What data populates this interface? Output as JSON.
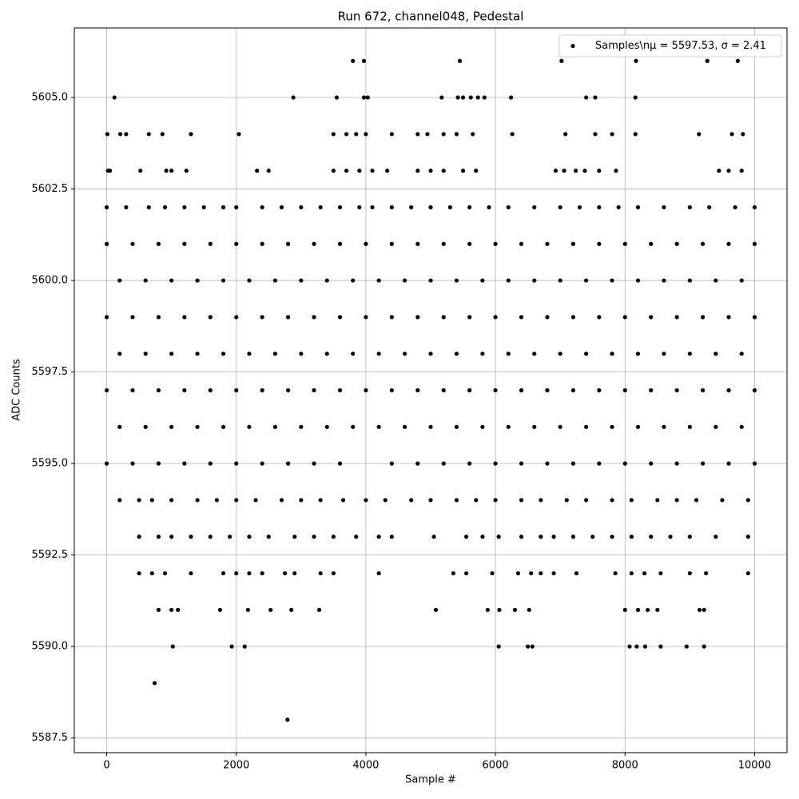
{
  "chart_data": {
    "type": "scatter",
    "title": "Run 672, channel048, Pedestal",
    "x_label": "Sample #",
    "y_label": "ADC Counts",
    "xlim": [
      -500,
      10500
    ],
    "ylim": [
      5587.1,
      5606.9
    ],
    "xticks": [
      0,
      2000,
      4000,
      6000,
      8000,
      10000
    ],
    "yticks": [
      5587.5,
      {
        "value": 5590,
        "label": "5590.0"
      },
      5592.5,
      {
        "value": 5595,
        "label": "5595.0"
      },
      5597.5,
      {
        "value": 5600,
        "label": "5600.0"
      },
      5602.5,
      {
        "value": 5605,
        "label": "5605.0"
      }
    ],
    "grid": true,
    "legend": "upper right",
    "series": [
      {
        "name": "Samples\\nμ = 5597.53, σ = 2.41",
        "color": "#000000",
        "x": [
          3800,
          3970,
          5450,
          7020,
          8170,
          9270,
          9740,
          120,
          2880,
          3550,
          3970,
          4030,
          5170,
          5420,
          5500,
          5620,
          5730,
          5830,
          6240,
          7400,
          7540,
          8160,
          10,
          210,
          300,
          650,
          860,
          1300,
          2040,
          3500,
          3700,
          3850,
          4000,
          4400,
          4800,
          4950,
          5200,
          5400,
          5650,
          6260,
          7080,
          7540,
          7800,
          8160,
          9140,
          9650,
          9820,
          20,
          50,
          520,
          920,
          1000,
          1230,
          2320,
          2500,
          3500,
          3700,
          3900,
          4100,
          4330,
          4800,
          5000,
          5200,
          5500,
          5700,
          6930,
          7060,
          7240,
          7380,
          7600,
          7860,
          9450,
          9600,
          9800,
          0,
          300,
          650,
          900,
          1200,
          1500,
          1800,
          2000,
          2400,
          2700,
          3000,
          3300,
          3600,
          3900,
          4100,
          4400,
          4700,
          5000,
          5300,
          5600,
          5900,
          6200,
          6600,
          7000,
          7300,
          7600,
          7900,
          8200,
          8600,
          9000,
          9300,
          9700,
          10000,
          0,
          400,
          800,
          1200,
          1600,
          2000,
          2400,
          2800,
          3200,
          3600,
          4000,
          4400,
          4800,
          5200,
          5600,
          6000,
          6400,
          6800,
          7200,
          7600,
          8000,
          8400,
          8800,
          9200,
          9600,
          10000,
          200,
          600,
          1000,
          1400,
          1800,
          2200,
          2600,
          3000,
          3400,
          3800,
          4200,
          4600,
          5000,
          5400,
          5800,
          6200,
          6600,
          7000,
          7400,
          7800,
          8200,
          8600,
          9000,
          9400,
          9800,
          0,
          400,
          800,
          1200,
          1600,
          2000,
          2400,
          2800,
          3200,
          3600,
          4000,
          4400,
          4800,
          5200,
          5600,
          6000,
          6400,
          6800,
          7200,
          7600,
          8000,
          8400,
          8800,
          9200,
          9600,
          10000,
          200,
          600,
          1000,
          1400,
          1800,
          2200,
          2600,
          3000,
          3400,
          3800,
          4200,
          4600,
          5000,
          5400,
          5800,
          6200,
          6600,
          7000,
          7400,
          7800,
          8200,
          8600,
          9000,
          9400,
          9800,
          0,
          400,
          800,
          1200,
          1600,
          2000,
          2400,
          2800,
          3200,
          3600,
          4000,
          4400,
          4800,
          5200,
          5600,
          6000,
          6400,
          6800,
          7200,
          7600,
          8000,
          8400,
          8800,
          9200,
          9600,
          10000,
          200,
          600,
          1000,
          1400,
          1800,
          2200,
          2600,
          3000,
          3400,
          3800,
          4200,
          4600,
          5000,
          5400,
          5800,
          6200,
          6600,
          7000,
          7400,
          7800,
          8200,
          8600,
          9000,
          9400,
          9800,
          0,
          400,
          800,
          1200,
          1600,
          2000,
          2400,
          2800,
          3200,
          3600,
          4400,
          4800,
          5200,
          5600,
          6000,
          6400,
          6800,
          7200,
          7600,
          8000,
          8400,
          8800,
          9200,
          9600,
          10000,
          200,
          500,
          700,
          1000,
          1400,
          1700,
          2000,
          2300,
          2700,
          3000,
          3300,
          3650,
          4000,
          4300,
          4700,
          5000,
          5400,
          5700,
          6000,
          6400,
          6700,
          7100,
          7400,
          7800,
          8100,
          8500,
          8800,
          9100,
          9500,
          9900,
          500,
          800,
          1000,
          1300,
          1600,
          1900,
          2200,
          2500,
          2900,
          3200,
          3500,
          3850,
          4200,
          4400,
          5050,
          5550,
          5800,
          6050,
          6400,
          6700,
          6900,
          7200,
          7500,
          7800,
          8100,
          8400,
          8700,
          9000,
          9400,
          9900,
          500,
          700,
          900,
          1300,
          1800,
          2000,
          2200,
          2400,
          2750,
          2900,
          3300,
          3500,
          4200,
          5350,
          5550,
          5950,
          6350,
          6550,
          6700,
          6900,
          7250,
          7850,
          8100,
          8300,
          8550,
          9000,
          9250,
          9900,
          800,
          1000,
          1100,
          1750,
          2180,
          2530,
          2850,
          3280,
          5080,
          5880,
          6060,
          6300,
          6520,
          8000,
          8200,
          8350,
          8500,
          9150,
          9220,
          1020,
          1930,
          2130,
          6050,
          6500,
          6570,
          8070,
          8180,
          8310,
          8550,
          8950,
          9220,
          740,
          2790
        ],
        "values": [
          5606,
          5606,
          5606,
          5606,
          5606,
          5606,
          5606,
          5605,
          5605,
          5605,
          5605,
          5605,
          5605,
          5605,
          5605,
          5605,
          5605,
          5605,
          5605,
          5605,
          5605,
          5605,
          5604,
          5604,
          5604,
          5604,
          5604,
          5604,
          5604,
          5604,
          5604,
          5604,
          5604,
          5604,
          5604,
          5604,
          5604,
          5604,
          5604,
          5604,
          5604,
          5604,
          5604,
          5604,
          5604,
          5604,
          5604,
          5603,
          5603,
          5603,
          5603,
          5603,
          5603,
          5603,
          5603,
          5603,
          5603,
          5603,
          5603,
          5603,
          5603,
          5603,
          5603,
          5603,
          5603,
          5603,
          5603,
          5603,
          5603,
          5603,
          5603,
          5603,
          5603,
          5603,
          5602,
          5602,
          5602,
          5602,
          5602,
          5602,
          5602,
          5602,
          5602,
          5602,
          5602,
          5602,
          5602,
          5602,
          5602,
          5602,
          5602,
          5602,
          5602,
          5602,
          5602,
          5602,
          5602,
          5602,
          5602,
          5602,
          5602,
          5602,
          5602,
          5602,
          5602,
          5602,
          5602,
          5601,
          5601,
          5601,
          5601,
          5601,
          5601,
          5601,
          5601,
          5601,
          5601,
          5601,
          5601,
          5601,
          5601,
          5601,
          5601,
          5601,
          5601,
          5601,
          5601,
          5601,
          5601,
          5601,
          5601,
          5601,
          5601,
          5600,
          5600,
          5600,
          5600,
          5600,
          5600,
          5600,
          5600,
          5600,
          5600,
          5600,
          5600,
          5600,
          5600,
          5600,
          5600,
          5600,
          5600,
          5600,
          5600,
          5600,
          5600,
          5600,
          5600,
          5600,
          5599,
          5599,
          5599,
          5599,
          5599,
          5599,
          5599,
          5599,
          5599,
          5599,
          5599,
          5599,
          5599,
          5599,
          5599,
          5599,
          5599,
          5599,
          5599,
          5599,
          5599,
          5599,
          5599,
          5599,
          5599,
          5599,
          5598,
          5598,
          5598,
          5598,
          5598,
          5598,
          5598,
          5598,
          5598,
          5598,
          5598,
          5598,
          5598,
          5598,
          5598,
          5598,
          5598,
          5598,
          5598,
          5598,
          5598,
          5598,
          5598,
          5598,
          5598,
          5597,
          5597,
          5597,
          5597,
          5597,
          5597,
          5597,
          5597,
          5597,
          5597,
          5597,
          5597,
          5597,
          5597,
          5597,
          5597,
          5597,
          5597,
          5597,
          5597,
          5597,
          5597,
          5597,
          5597,
          5597,
          5597,
          5596,
          5596,
          5596,
          5596,
          5596,
          5596,
          5596,
          5596,
          5596,
          5596,
          5596,
          5596,
          5596,
          5596,
          5596,
          5596,
          5596,
          5596,
          5596,
          5596,
          5596,
          5596,
          5596,
          5596,
          5596,
          5595,
          5595,
          5595,
          5595,
          5595,
          5595,
          5595,
          5595,
          5595,
          5595,
          5595,
          5595,
          5595,
          5595,
          5595,
          5595,
          5595,
          5595,
          5595,
          5595,
          5595,
          5595,
          5595,
          5595,
          5595,
          5594,
          5594,
          5594,
          5594,
          5594,
          5594,
          5594,
          5594,
          5594,
          5594,
          5594,
          5594,
          5594,
          5594,
          5594,
          5594,
          5594,
          5594,
          5594,
          5594,
          5594,
          5594,
          5594,
          5594,
          5594,
          5594,
          5594,
          5594,
          5594,
          5594,
          5593,
          5593,
          5593,
          5593,
          5593,
          5593,
          5593,
          5593,
          5593,
          5593,
          5593,
          5593,
          5593,
          5593,
          5593,
          5593,
          5593,
          5593,
          5593,
          5593,
          5593,
          5593,
          5593,
          5593,
          5593,
          5593,
          5593,
          5593,
          5593,
          5593,
          5592,
          5592,
          5592,
          5592,
          5592,
          5592,
          5592,
          5592,
          5592,
          5592,
          5592,
          5592,
          5592,
          5592,
          5592,
          5592,
          5592,
          5592,
          5592,
          5592,
          5592,
          5592,
          5592,
          5592,
          5592,
          5592,
          5592,
          5592,
          5591,
          5591,
          5591,
          5591,
          5591,
          5591,
          5591,
          5591,
          5591,
          5591,
          5591,
          5591,
          5591,
          5591,
          5591,
          5591,
          5591,
          5591,
          5591,
          5590,
          5590,
          5590,
          5590,
          5590,
          5590,
          5590,
          5590,
          5590,
          5590,
          5590,
          5590,
          5589,
          5588
        ]
      }
    ]
  }
}
